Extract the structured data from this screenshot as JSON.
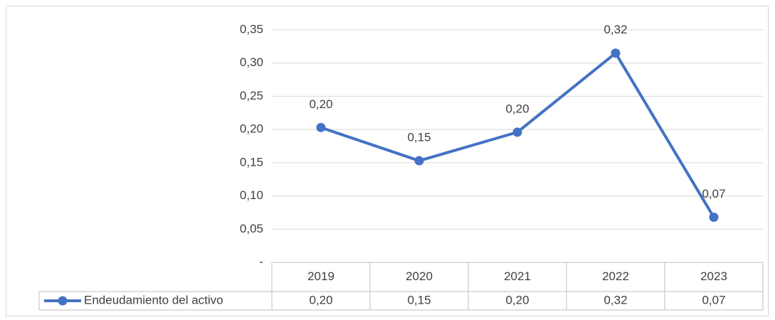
{
  "chart_data": {
    "type": "line",
    "categories": [
      "2019",
      "2020",
      "2021",
      "2022",
      "2023"
    ],
    "series": [
      {
        "name": "Endeudamiento del activo",
        "color": "#4472c4",
        "values": [
          0.203,
          0.153,
          0.196,
          0.315,
          0.068
        ],
        "value_labels": [
          "0,20",
          "0,15",
          "0,20",
          "0,32",
          "0,07"
        ]
      }
    ],
    "ylim": [
      0,
      0.35
    ],
    "yticks": [
      {
        "value": 0,
        "label": "-"
      },
      {
        "value": 0.05,
        "label": "0,05"
      },
      {
        "value": 0.1,
        "label": "0,10"
      },
      {
        "value": 0.15,
        "label": "0,15"
      },
      {
        "value": 0.2,
        "label": "0,20"
      },
      {
        "value": 0.25,
        "label": "0,25"
      },
      {
        "value": 0.3,
        "label": "0,30"
      },
      {
        "value": 0.35,
        "label": "0,35"
      }
    ],
    "grid": true,
    "data_table": true
  }
}
